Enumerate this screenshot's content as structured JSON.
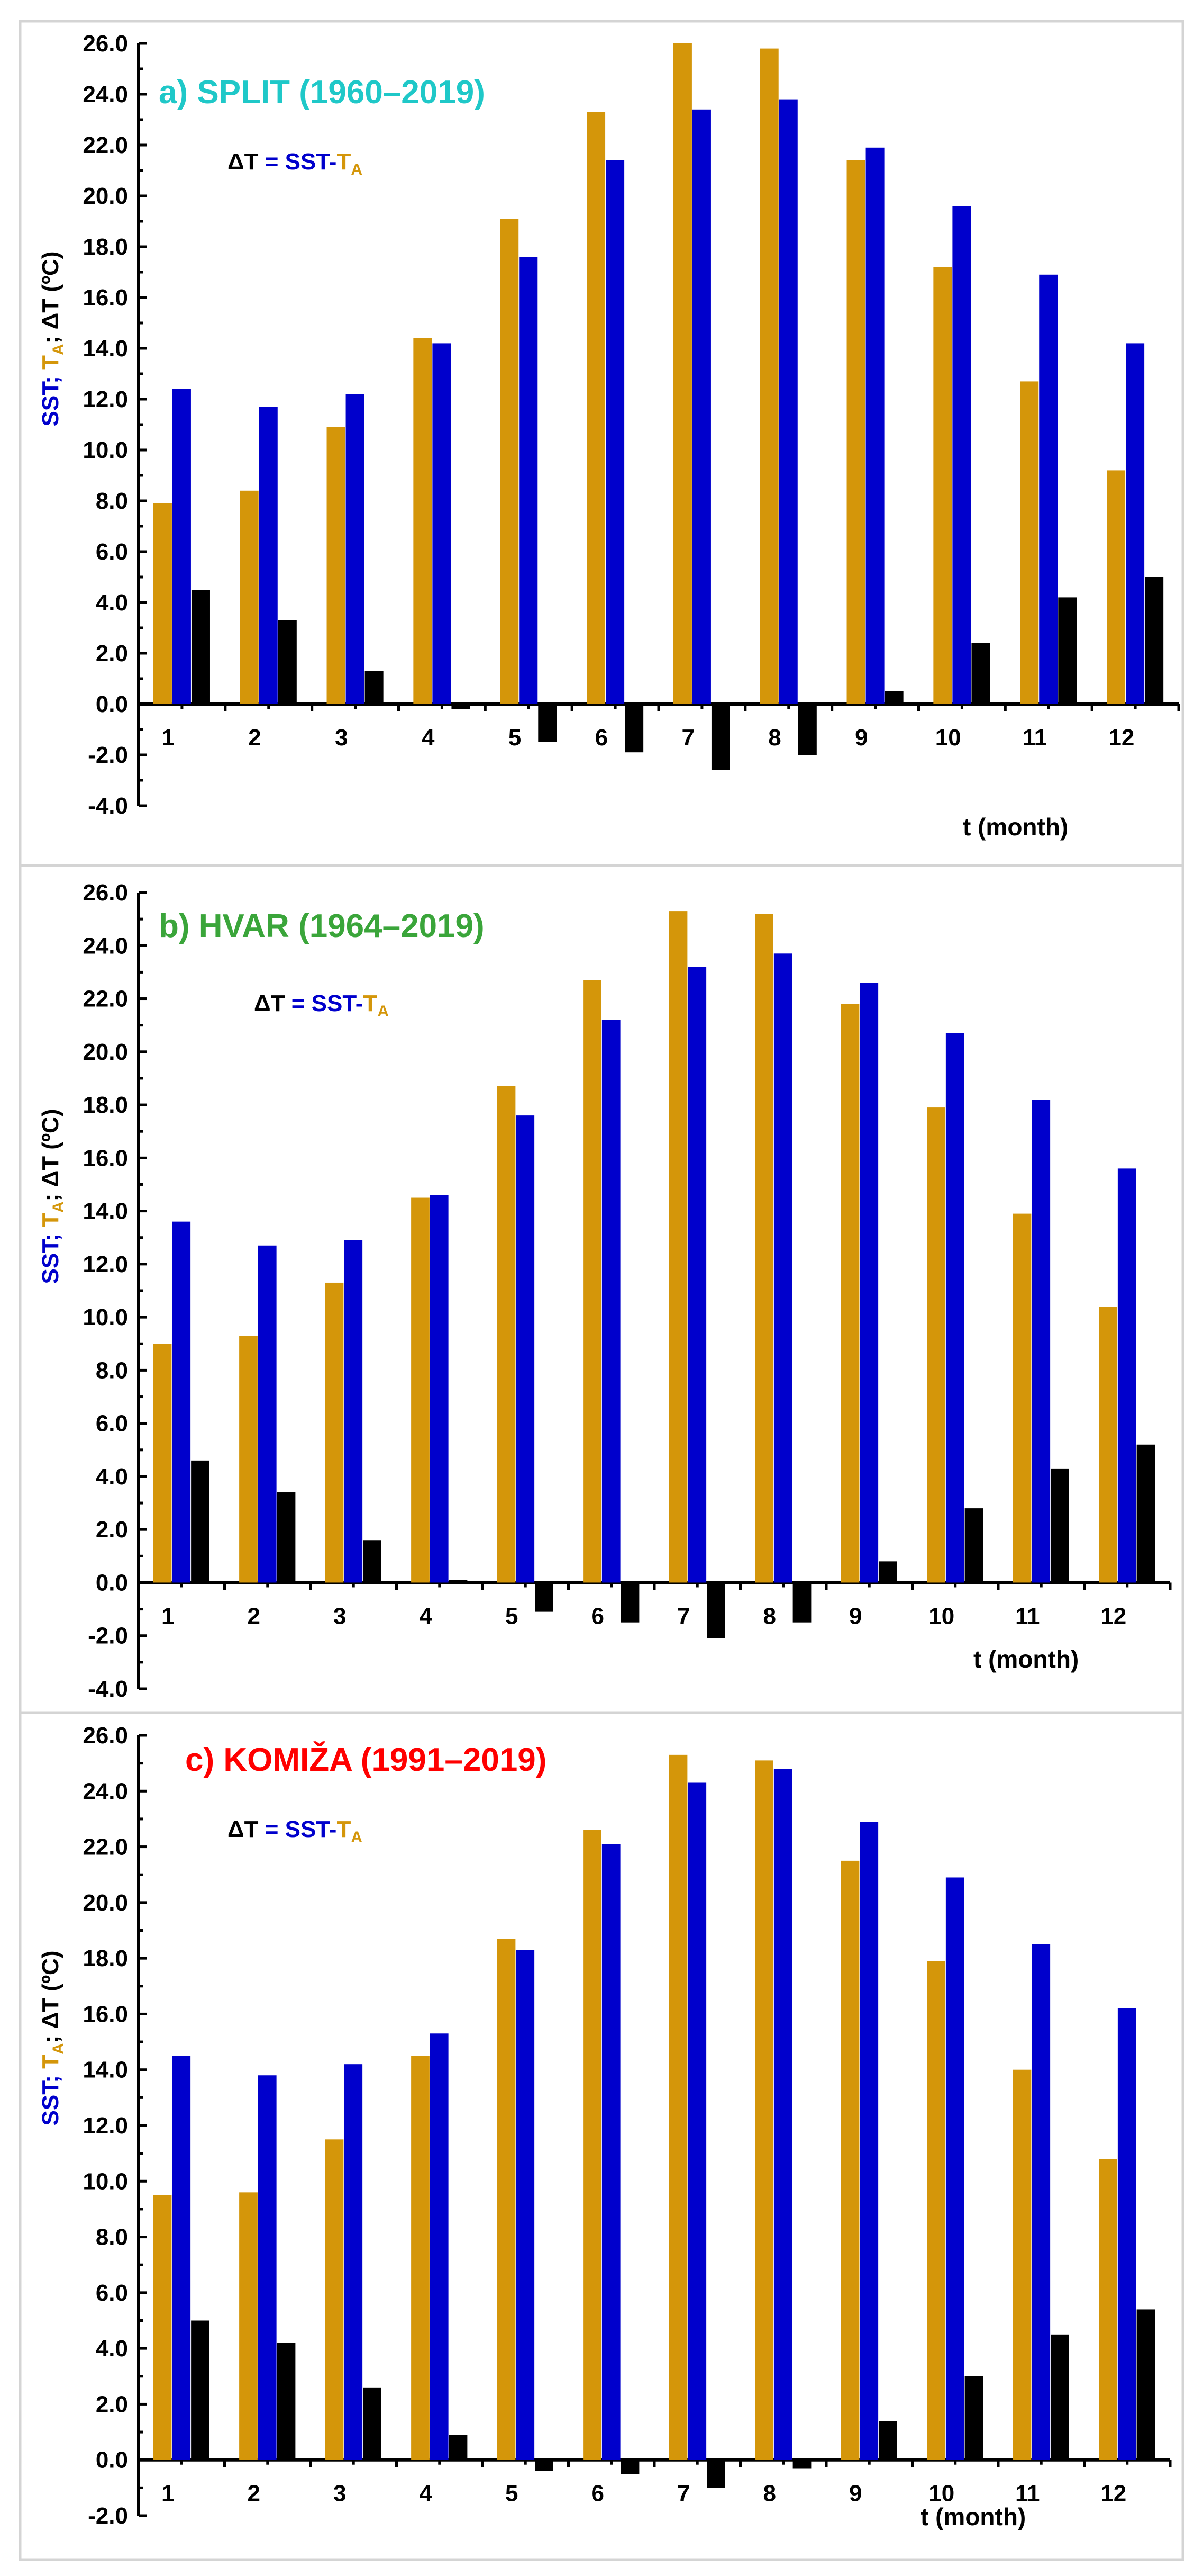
{
  "colors": {
    "ta": "#d4960a",
    "sst": "#0000cc",
    "dt": "#000000",
    "title_a": "#1fc8c8",
    "title_b": "#3aa53a",
    "title_c": "#ff0000"
  },
  "formula": {
    "dt": "ΔT",
    "eq": " = SST-",
    "t": "T",
    "sub": "A"
  },
  "ylabel": {
    "sst": "SST; ",
    "t": "T",
    "sub": "A",
    "dt": "; ΔT (ºC)"
  },
  "xlabel": "t (month)",
  "chart_data": [
    {
      "type": "bar",
      "title": "a) SPLIT (1960–2019)",
      "categories": [
        "1",
        "2",
        "3",
        "4",
        "5",
        "6",
        "7",
        "8",
        "9",
        "10",
        "11",
        "12"
      ],
      "ylim": [
        -4,
        26
      ],
      "yticks": [
        "26.0",
        "24.0",
        "22.0",
        "20.0",
        "18.0",
        "16.0",
        "14.0",
        "12.0",
        "10.0",
        "8.0",
        "6.0",
        "4.0",
        "2.0",
        "0.0",
        "-2.0",
        "-4.0"
      ],
      "series": [
        {
          "name": "TA",
          "values": [
            7.9,
            8.4,
            10.9,
            14.4,
            19.1,
            23.3,
            26.0,
            25.8,
            21.4,
            17.2,
            12.7,
            9.2
          ]
        },
        {
          "name": "SST",
          "values": [
            12.4,
            11.7,
            12.2,
            14.2,
            17.6,
            21.4,
            23.4,
            23.8,
            21.9,
            19.6,
            16.9,
            14.2
          ]
        },
        {
          "name": "ΔT",
          "values": [
            4.5,
            3.3,
            1.3,
            -0.2,
            -1.5,
            -1.9,
            -2.6,
            -2.0,
            0.5,
            2.4,
            4.2,
            5.0
          ]
        }
      ]
    },
    {
      "type": "bar",
      "title": "b) HVAR (1964–2019)",
      "categories": [
        "1",
        "2",
        "3",
        "4",
        "5",
        "6",
        "7",
        "8",
        "9",
        "10",
        "11",
        "12"
      ],
      "ylim": [
        -4,
        26
      ],
      "yticks": [
        "26.0",
        "24.0",
        "22.0",
        "20.0",
        "18.0",
        "16.0",
        "14.0",
        "12.0",
        "10.0",
        "8.0",
        "6.0",
        "4.0",
        "2.0",
        "0.0",
        "-2.0",
        "-4.0"
      ],
      "series": [
        {
          "name": "TA",
          "values": [
            9.0,
            9.3,
            11.3,
            14.5,
            18.7,
            22.7,
            25.3,
            25.2,
            21.8,
            17.9,
            13.9,
            10.4
          ]
        },
        {
          "name": "SST",
          "values": [
            13.6,
            12.7,
            12.9,
            14.6,
            17.6,
            21.2,
            23.2,
            23.7,
            22.6,
            20.7,
            18.2,
            15.6
          ]
        },
        {
          "name": "ΔT",
          "values": [
            4.6,
            3.4,
            1.6,
            0.1,
            -1.1,
            -1.5,
            -2.1,
            -1.5,
            0.8,
            2.8,
            4.3,
            5.2
          ]
        }
      ]
    },
    {
      "type": "bar",
      "title": "c) KOMIŽA (1991–2019)",
      "categories": [
        "1",
        "2",
        "3",
        "4",
        "5",
        "6",
        "7",
        "8",
        "9",
        "10",
        "11",
        "12"
      ],
      "ylim": [
        -2,
        26
      ],
      "yticks": [
        "26.0",
        "24.0",
        "22.0",
        "20.0",
        "18.0",
        "16.0",
        "14.0",
        "12.0",
        "10.0",
        "8.0",
        "6.0",
        "4.0",
        "2.0",
        "0.0",
        "-2.0"
      ],
      "series": [
        {
          "name": "TA",
          "values": [
            9.5,
            9.6,
            11.5,
            14.5,
            18.7,
            22.6,
            25.3,
            25.1,
            21.5,
            17.9,
            14.0,
            10.8
          ]
        },
        {
          "name": "SST",
          "values": [
            14.5,
            13.8,
            14.2,
            15.3,
            18.3,
            22.1,
            24.3,
            24.8,
            22.9,
            20.9,
            18.5,
            16.2
          ]
        },
        {
          "name": "ΔT",
          "values": [
            5.0,
            4.2,
            2.6,
            0.9,
            -0.4,
            -0.5,
            -1.0,
            -0.3,
            1.4,
            3.0,
            4.5,
            5.4
          ]
        }
      ]
    }
  ]
}
